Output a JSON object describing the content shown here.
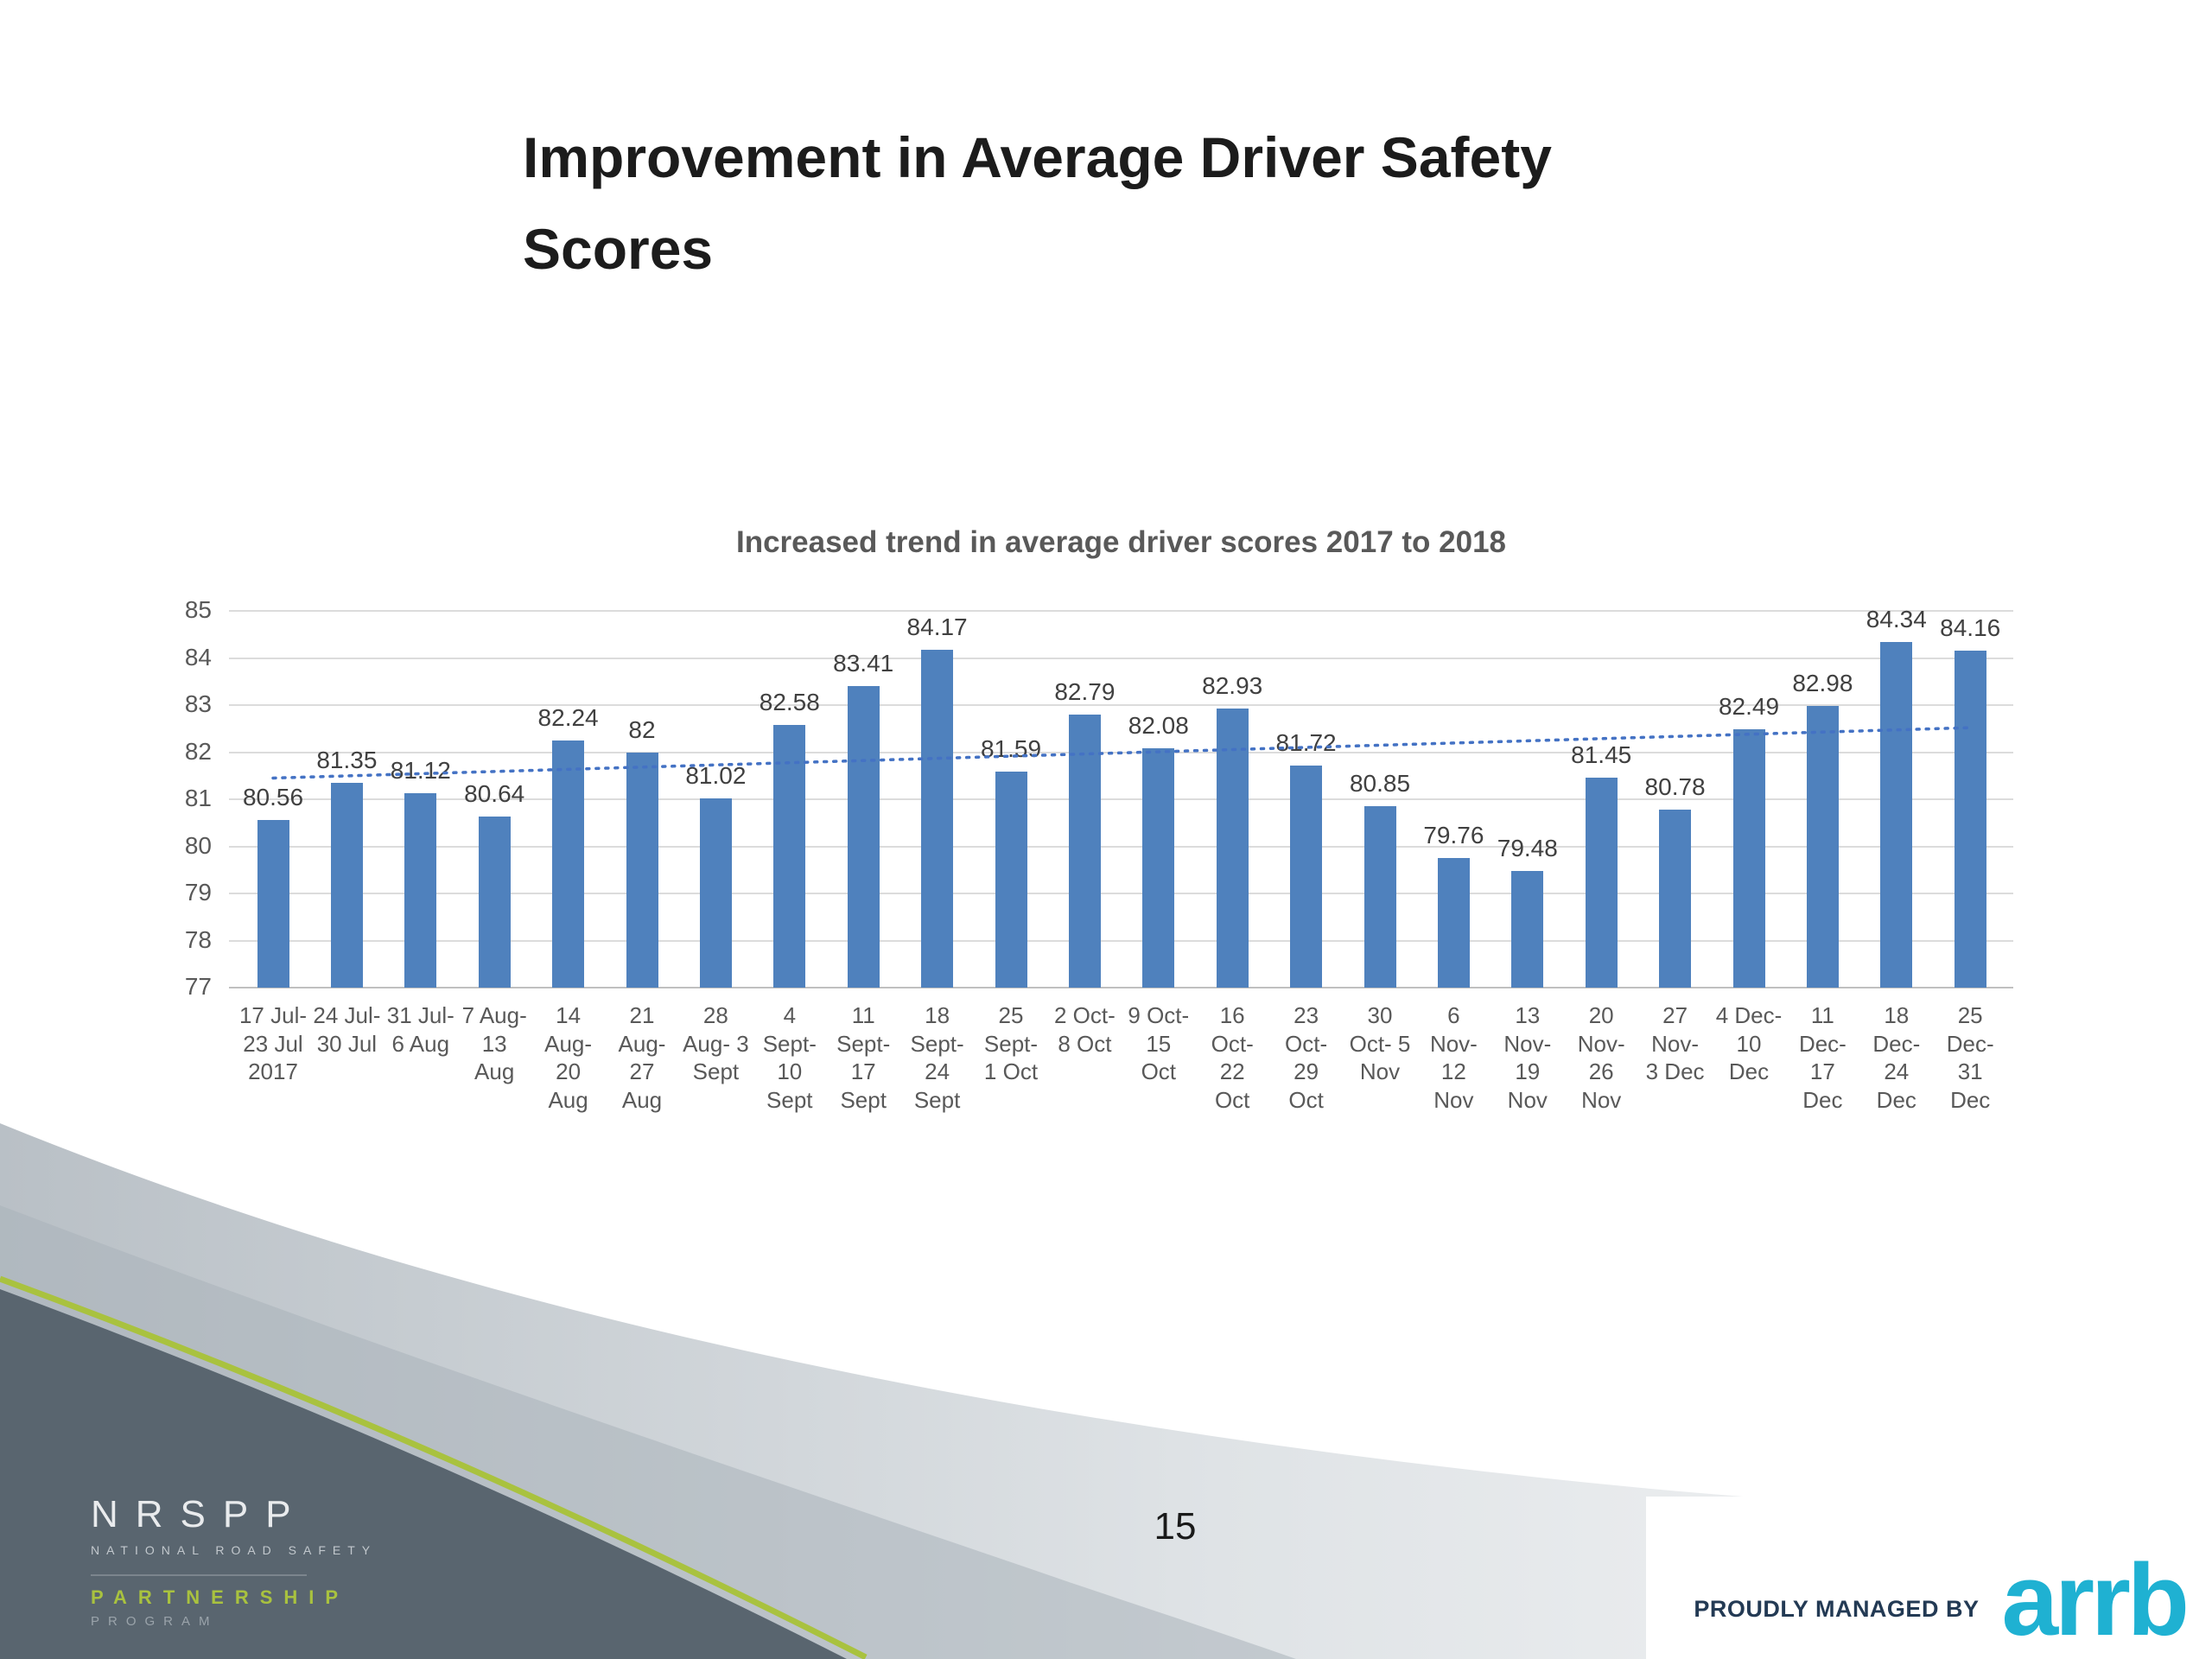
{
  "slide": {
    "title": "Improvement in Average Driver Safety\nScores",
    "page_number": "15"
  },
  "chart_data": {
    "type": "bar",
    "title": "Increased trend in average driver scores 2017 to 2018",
    "categories": [
      "17 Jul-\n23 Jul\n2017",
      "24 Jul-\n30 Jul",
      "31 Jul-\n6 Aug",
      "7 Aug-\n13\nAug",
      "14\nAug-\n20\nAug",
      "21\nAug-\n27\nAug",
      "28\nAug- 3\nSept",
      "4\nSept-\n10\nSept",
      "11\nSept-\n17\nSept",
      "18\nSept-\n24\nSept",
      "25\nSept-\n1 Oct",
      "2 Oct-\n8 Oct",
      "9 Oct-\n15\nOct",
      "16\nOct-\n22\nOct",
      "23\nOct-\n29\nOct",
      "30\nOct- 5\nNov",
      "6\nNov-\n12\nNov",
      "13\nNov-\n19\nNov",
      "20\nNov-\n26\nNov",
      "27\nNov-\n3 Dec",
      "4 Dec-\n10\nDec",
      "11\nDec-\n17\nDec",
      "18\nDec-\n24\nDec",
      "25\nDec-\n31\nDec"
    ],
    "values": [
      80.56,
      81.35,
      81.12,
      80.64,
      82.24,
      82,
      81.02,
      82.58,
      83.41,
      84.17,
      81.59,
      82.79,
      82.08,
      82.93,
      81.72,
      80.85,
      79.76,
      79.48,
      81.45,
      80.78,
      82.49,
      82.98,
      84.34,
      84.16
    ],
    "data_labels": [
      "80.56",
      "81.35",
      "81.12",
      "80.64",
      "82.24",
      "82",
      "81.02",
      "82.58",
      "83.41",
      "84.17",
      "81.59",
      "82.79",
      "82.08",
      "82.93",
      "81.72",
      "80.85",
      "79.76",
      "79.48",
      "81.45",
      "80.78",
      "82.49",
      "82.98",
      "84.34",
      "84.16"
    ],
    "ylim": [
      77,
      85
    ],
    "yticks": [
      77,
      78,
      79,
      80,
      81,
      82,
      83,
      84,
      85
    ],
    "grid": true,
    "legend": "none",
    "bar_color": "#4f81bd",
    "trendline": {
      "start": 81.45,
      "end": 82.52,
      "color": "#4472c4",
      "style": "dotted"
    }
  },
  "footer": {
    "nrspp": {
      "name": "NRSPP",
      "tagline": "NATIONAL ROAD SAFETY",
      "line2": "PARTNERSHIP",
      "line3": "PROGRAM",
      "accent_color": "#a9c23f"
    },
    "managed_by": "PROUDLY MANAGED BY",
    "brand": "arrb",
    "brand_color": "#1fb1d2"
  }
}
